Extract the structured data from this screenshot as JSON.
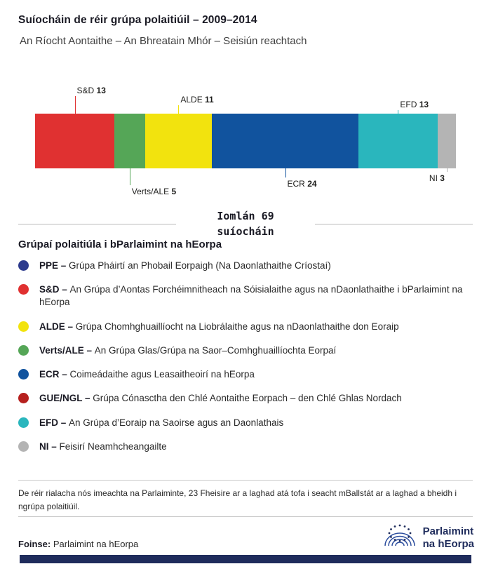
{
  "header": {
    "title": "Suíocháin de réir grúpa polaitiúil – 2009–2014",
    "subtitle": "An Ríocht Aontaithe – An Bhreatain Mhór – Seisiún reachtach"
  },
  "chart_data": {
    "type": "bar",
    "subtype": "stacked-horizontal",
    "title": "Suíocháin de réir grúpa polaitiúil – 2009–2014",
    "categories": [
      "S&D",
      "Verts/ALE",
      "ALDE",
      "ECR",
      "EFD",
      "NI"
    ],
    "values": [
      13,
      5,
      11,
      24,
      13,
      3
    ],
    "total": 69,
    "segments": [
      {
        "group": "S&D",
        "seats": 13,
        "color": "#e03131",
        "label_pos": "top"
      },
      {
        "group": "Verts/ALE",
        "seats": 5,
        "color": "#55a657",
        "label_pos": "bottom"
      },
      {
        "group": "ALDE",
        "seats": 11,
        "color": "#f2e30e",
        "label_pos": "top"
      },
      {
        "group": "ECR",
        "seats": 24,
        "color": "#11539e",
        "label_pos": "bottom"
      },
      {
        "group": "EFD",
        "seats": 13,
        "color": "#2ab6bd",
        "label_pos": "top"
      },
      {
        "group": "NI",
        "seats": 3,
        "color": "#b4b4b4",
        "label_pos": "bottom"
      }
    ]
  },
  "total": {
    "line1": "Iomlán 69",
    "line2": "suíocháin"
  },
  "legend": {
    "title": "Grúpaí polaitiúla i bParlaimint na hEorpa",
    "items": [
      {
        "abbr": "PPE –",
        "desc": "Grúpa Pháirtí an Phobail Eorpaigh (Na Daonlathaithe Críostaí)",
        "color": "#2d3b8d"
      },
      {
        "abbr": "S&D –",
        "desc": "An Grúpa d’Aontas Forchéimnitheach na Sóisialaithe agus na nDaonlathaithe i bParlaimint na hEorpa",
        "color": "#e03131"
      },
      {
        "abbr": "ALDE –",
        "desc": "Grúpa Chomhghuaillíocht na Liobrálaithe agus na nDaonlathaithe don Eoraip",
        "color": "#f2e30e"
      },
      {
        "abbr": "Verts/ALE –",
        "desc": "An Grúpa Glas/Grúpa na Saor–Comhghuaillíochta Eorpaí",
        "color": "#55a657"
      },
      {
        "abbr": "ECR –",
        "desc": "Coimeádaithe agus Leasaitheoirí na hEorpa",
        "color": "#11539e"
      },
      {
        "abbr": "GUE/NGL –",
        "desc": "Grúpa Cónasctha den Chlé Aontaithe Eorpach – den Chlé Ghlas Nordach",
        "color": "#b6201e"
      },
      {
        "abbr": "EFD –",
        "desc": "An Grúpa d’Eoraip na Saoirse agus an Daonlathais",
        "color": "#2ab6bd"
      },
      {
        "abbr": "NI –",
        "desc": "Feisirí Neamhcheangailte",
        "color": "#b4b4b4"
      }
    ]
  },
  "footer": {
    "note": "De réir rialacha nós imeachta na Parlaiminte, 23 Fheisire ar a laghad atá tofa i seacht mBallstát ar a laghad a bheidh i ngrúpa polaitiúil.",
    "source_label": "Foinse:",
    "source": "Parlaimint na hEorpa",
    "logo_line1": "Parlaimint",
    "logo_line2": "na hEorpa"
  }
}
